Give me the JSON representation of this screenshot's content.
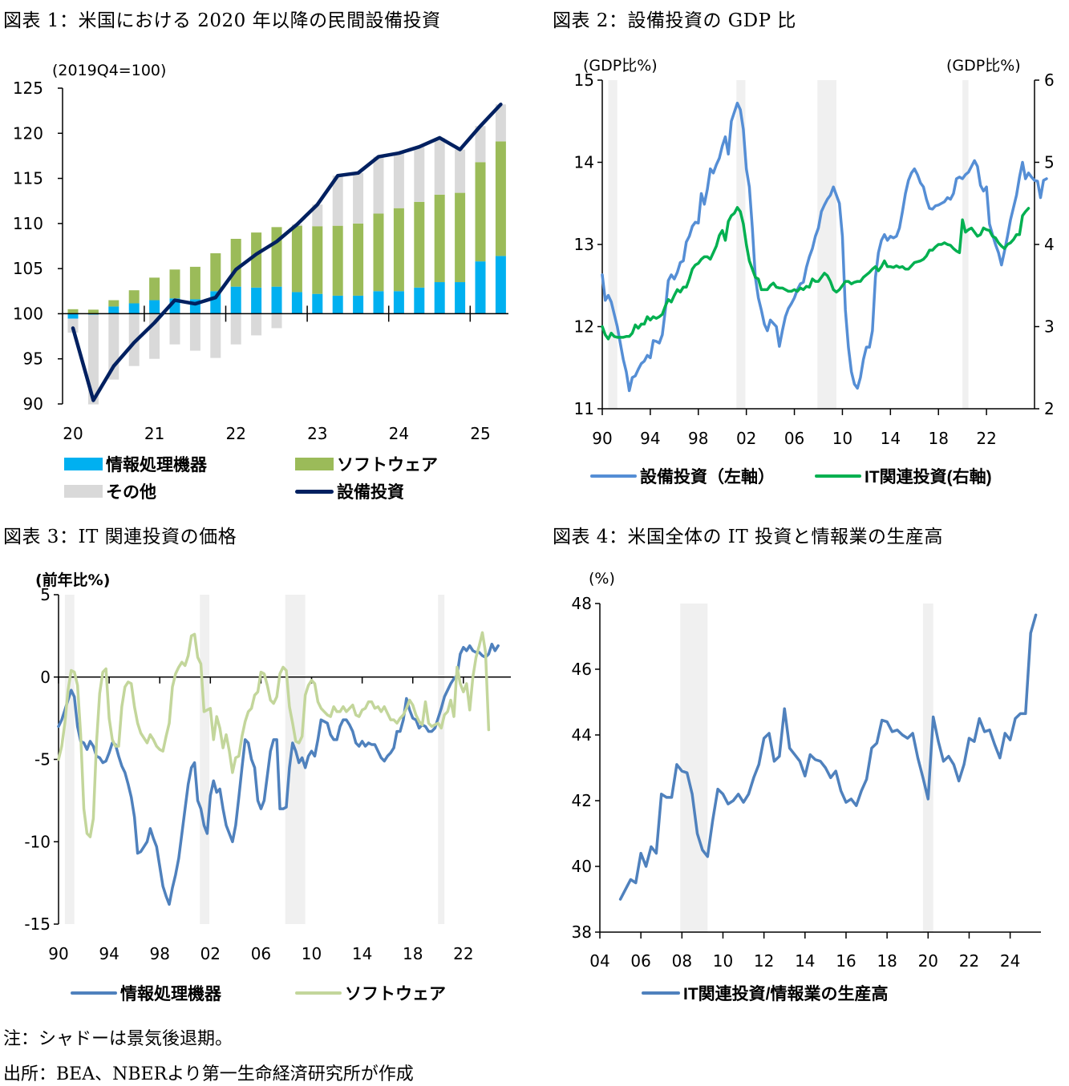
{
  "titles": {
    "fig1": "図表 1：米国における 2020 年以降の民間設備投資",
    "fig2": "図表 2：設備投資の GDP 比",
    "fig3": "図表 3：IT 関連投資の価格",
    "fig4": "図表 4：米国全体の IT 投資と情報業の生産高"
  },
  "notes": {
    "note": "注：シャドーは景気後退期。",
    "source": "出所：BEA、NBERより第一生命経済研究所が作成"
  },
  "chart_data": [
    {
      "id": "fig1",
      "type": "bar",
      "stacked": true,
      "title": "米国における 2020 年以降の民間設備投資",
      "unit_label": "(2019Q4=100)",
      "ylim": [
        90,
        125
      ],
      "yticks": [
        90,
        95,
        100,
        105,
        110,
        115,
        120,
        125
      ],
      "baseline": 100,
      "x_tick_labels": [
        "20",
        "21",
        "22",
        "23",
        "24",
        "25"
      ],
      "categories": [
        "2020Q1",
        "2020Q2",
        "2020Q3",
        "2020Q4",
        "2021Q1",
        "2021Q2",
        "2021Q3",
        "2021Q4",
        "2022Q1",
        "2022Q2",
        "2022Q3",
        "2022Q4",
        "2023Q1",
        "2023Q2",
        "2023Q3",
        "2023Q4",
        "2024Q1",
        "2024Q2",
        "2024Q3",
        "2024Q4",
        "2025Q1",
        "2025Q2"
      ],
      "series": [
        {
          "name": "情報処理機器",
          "kind": "bar",
          "color": "#00b0f0",
          "values": [
            -0.55,
            -0.1,
            0.8,
            1.15,
            1.5,
            1.7,
            1.6,
            2.5,
            3.0,
            2.9,
            3.0,
            2.4,
            2.2,
            2.0,
            2.0,
            2.5,
            2.5,
            2.9,
            3.5,
            3.5,
            5.8,
            6.4
          ]
        },
        {
          "name": "ソフトウェア",
          "kind": "bar",
          "color": "#9bbb59",
          "values": [
            0.5,
            0.45,
            0.7,
            1.45,
            2.5,
            3.2,
            3.6,
            4.2,
            5.3,
            6.1,
            6.6,
            7.35,
            7.5,
            7.75,
            8.0,
            8.6,
            9.2,
            9.5,
            9.7,
            9.9,
            11.0,
            12.7
          ]
        },
        {
          "name": "その他",
          "kind": "bar",
          "color": "#d9d9d9",
          "values": [
            -1.55,
            -9.95,
            -7.3,
            -5.8,
            -5.0,
            -3.4,
            -4.1,
            -4.9,
            -3.4,
            -2.4,
            -1.6,
            0.15,
            2.4,
            5.55,
            5.6,
            6.3,
            6.1,
            6.1,
            6.3,
            4.8,
            4.0,
            4.1
          ]
        },
        {
          "name": "設備投資",
          "kind": "line",
          "color": "#002060",
          "values": [
            98.4,
            90.4,
            94.2,
            96.8,
            99.0,
            101.5,
            101.1,
            101.8,
            104.9,
            106.6,
            108.0,
            109.9,
            112.1,
            115.3,
            115.6,
            117.4,
            117.8,
            118.5,
            119.5,
            118.2,
            120.8,
            123.2
          ]
        }
      ],
      "legend": {
        "position": "bottom",
        "items": [
          "情報処理機器",
          "ソフトウェア",
          "その他",
          "設備投資"
        ]
      }
    },
    {
      "id": "fig2",
      "type": "line",
      "title": "設備投資の GDP 比",
      "ylabel_left": "(GDP比%)",
      "ylabel_right": "(GDP比%)",
      "ylim_left": [
        11,
        15
      ],
      "ylim_right": [
        2,
        6
      ],
      "yticks_left": [
        11,
        12,
        13,
        14,
        15
      ],
      "yticks_right": [
        2,
        3,
        4,
        5,
        6
      ],
      "xlim": [
        1990,
        2026
      ],
      "x_tick_labels": [
        "90",
        "94",
        "98",
        "02",
        "06",
        "10",
        "14",
        "18",
        "22"
      ],
      "x_tick_years": [
        1990,
        1994,
        1998,
        2002,
        2006,
        2010,
        2014,
        2018,
        2022
      ],
      "recessions": [
        [
          1990.5,
          1991.25
        ],
        [
          2001.17,
          2001.92
        ],
        [
          2007.92,
          2009.5
        ],
        [
          2020.0,
          2020.5
        ]
      ],
      "x_start": 1990.0,
      "x_step": 0.25,
      "series": [
        {
          "name": "設備投資（左軸）",
          "axis": "left",
          "color": "#558ed5",
          "values": [
            12.63,
            12.32,
            12.38,
            12.3,
            12.15,
            12.0,
            11.8,
            11.6,
            11.45,
            11.22,
            11.38,
            11.4,
            11.48,
            11.55,
            11.58,
            11.65,
            11.62,
            11.83,
            11.82,
            11.8,
            11.9,
            12.2,
            12.56,
            12.63,
            12.58,
            12.66,
            12.78,
            12.8,
            13.03,
            13.1,
            13.22,
            13.27,
            13.26,
            13.62,
            13.49,
            13.67,
            13.92,
            13.87,
            13.97,
            14.05,
            14.2,
            14.31,
            14.1,
            14.5,
            14.61,
            14.72,
            14.64,
            14.4,
            13.92,
            13.7,
            13.2,
            12.6,
            12.35,
            12.2,
            12.03,
            11.95,
            12.08,
            12.04,
            12.0,
            11.76,
            11.95,
            12.12,
            12.22,
            12.28,
            12.35,
            12.45,
            12.52,
            12.54,
            12.72,
            12.85,
            12.95,
            13.1,
            13.2,
            13.4,
            13.48,
            13.55,
            13.6,
            13.7,
            13.6,
            13.5,
            13.1,
            12.2,
            11.75,
            11.45,
            11.3,
            11.25,
            11.38,
            11.6,
            11.75,
            11.75,
            11.95,
            12.6,
            12.9,
            13.05,
            13.12,
            13.05,
            13.1,
            13.08,
            13.1,
            13.2,
            13.4,
            13.62,
            13.78,
            13.87,
            13.92,
            13.85,
            13.75,
            13.7,
            13.55,
            13.44,
            13.43,
            13.47,
            13.48,
            13.5,
            13.52,
            13.57,
            13.55,
            13.62,
            13.8,
            13.82,
            13.8,
            13.85,
            13.88,
            13.95,
            14.02,
            13.95,
            13.72,
            13.65,
            13.7,
            13.25,
            13.12,
            13.0,
            12.9,
            12.75,
            12.92,
            13.1,
            13.3,
            13.45,
            13.6,
            13.82,
            14.0,
            13.8,
            13.87,
            13.82,
            13.78,
            13.77,
            13.57,
            13.78,
            13.8
          ]
        },
        {
          "name": "IT関連投資(右軸)",
          "axis": "right",
          "color": "#00b050",
          "values": [
            3.0,
            2.9,
            2.85,
            2.92,
            2.88,
            2.87,
            2.87,
            2.87,
            2.88,
            2.88,
            2.92,
            3.02,
            2.98,
            3.03,
            3.03,
            3.12,
            3.08,
            3.12,
            3.1,
            3.12,
            3.15,
            3.25,
            3.33,
            3.3,
            3.38,
            3.45,
            3.42,
            3.48,
            3.48,
            3.58,
            3.7,
            3.75,
            3.77,
            3.82,
            3.85,
            3.85,
            3.82,
            3.9,
            3.98,
            4.11,
            4.17,
            4.05,
            4.28,
            4.35,
            4.38,
            4.45,
            4.4,
            4.25,
            4.0,
            3.8,
            3.7,
            3.6,
            3.58,
            3.45,
            3.45,
            3.45,
            3.5,
            3.53,
            3.48,
            3.47,
            3.47,
            3.45,
            3.43,
            3.43,
            3.45,
            3.43,
            3.47,
            3.45,
            3.49,
            3.48,
            3.58,
            3.55,
            3.55,
            3.6,
            3.65,
            3.62,
            3.55,
            3.45,
            3.42,
            3.45,
            3.5,
            3.55,
            3.55,
            3.52,
            3.54,
            3.55,
            3.55,
            3.6,
            3.63,
            3.66,
            3.7,
            3.73,
            3.68,
            3.73,
            3.8,
            3.73,
            3.73,
            3.72,
            3.74,
            3.72,
            3.73,
            3.7,
            3.7,
            3.74,
            3.78,
            3.79,
            3.8,
            3.82,
            3.86,
            3.93,
            3.93,
            3.97,
            4.0,
            4.0,
            4.02,
            4.0,
            3.99,
            3.95,
            3.92,
            3.9,
            4.3,
            4.15,
            4.18,
            4.2,
            4.15,
            4.1,
            4.12,
            4.2,
            4.18,
            4.17,
            4.1,
            4.08,
            4.02,
            3.98,
            3.95,
            4.0,
            4.02,
            4.06,
            4.12,
            4.12,
            4.35,
            4.4,
            4.44
          ]
        }
      ],
      "legend": {
        "position": "bottom",
        "items": [
          "設備投資（左軸）",
          "IT関連投資(右軸)"
        ]
      }
    },
    {
      "id": "fig3",
      "type": "line",
      "title": "IT 関連投資の価格",
      "ylabel": "(前年比%)",
      "ylim": [
        -15,
        5
      ],
      "yticks": [
        -15,
        -10,
        -5,
        0,
        5
      ],
      "ytick_labels": [
        "-15",
        "-10",
        "-5",
        "0",
        "5"
      ],
      "xlim": [
        1990,
        2025.75
      ],
      "x_tick_labels": [
        "90",
        "94",
        "98",
        "02",
        "06",
        "10",
        "14",
        "18",
        "22"
      ],
      "x_tick_years": [
        1990,
        1994,
        1998,
        2002,
        2006,
        2010,
        2014,
        2018,
        2022
      ],
      "recessions": [
        [
          1990.5,
          1991.25
        ],
        [
          2001.17,
          2001.92
        ],
        [
          2007.92,
          2009.5
        ],
        [
          2020.0,
          2020.5
        ]
      ],
      "x_start": 1990.0,
      "x_step": 0.25,
      "series": [
        {
          "name": "情報処理機器",
          "color": "#4f81bd",
          "values": [
            -3.0,
            -2.6,
            -2.0,
            -1.4,
            -0.8,
            -1.2,
            -3.0,
            -3.9,
            -4.0,
            -4.4,
            -3.9,
            -4.2,
            -4.8,
            -4.9,
            -5.2,
            -5.1,
            -4.6,
            -4.0,
            -4.1,
            -4.8,
            -5.4,
            -5.8,
            -6.5,
            -7.3,
            -8.5,
            -10.7,
            -10.6,
            -10.3,
            -10.0,
            -9.2,
            -9.8,
            -10.3,
            -11.5,
            -12.7,
            -13.3,
            -13.8,
            -12.8,
            -12.0,
            -11.0,
            -9.5,
            -8.0,
            -6.5,
            -5.5,
            -5.2,
            -7.5,
            -8.0,
            -9.0,
            -9.5,
            -7.2,
            -6.3,
            -7.0,
            -6.8,
            -8.0,
            -9.0,
            -9.5,
            -10.0,
            -9.0,
            -7.3,
            -5.5,
            -3.8,
            -4.0,
            -5.0,
            -5.5,
            -7.5,
            -8.0,
            -7.5,
            -6.0,
            -4.5,
            -3.8,
            -3.8,
            -8.0,
            -8.0,
            -7.9,
            -5.5,
            -4.0,
            -4.5,
            -5.2,
            -4.9,
            -5.5,
            -4.8,
            -4.5,
            -4.8,
            -3.8,
            -2.6,
            -2.7,
            -2.8,
            -3.5,
            -3.8,
            -3.8,
            -3.0,
            -2.6,
            -2.6,
            -2.9,
            -3.3,
            -4.0,
            -4.2,
            -3.9,
            -4.2,
            -4.0,
            -4.1,
            -4.1,
            -4.5,
            -4.9,
            -5.1,
            -4.8,
            -4.6,
            -4.3,
            -3.3,
            -3.3,
            -2.6,
            -1.3,
            -2.0,
            -2.5,
            -2.6,
            -3.1,
            -2.9,
            -3.0,
            -3.3,
            -3.3,
            -3.1,
            -2.5,
            -1.9,
            -1.2,
            -0.8,
            -0.4,
            -0.1,
            0.1,
            1.4,
            1.8,
            1.6,
            1.9,
            1.6,
            1.5,
            1.5,
            1.3,
            1.2,
            1.4,
            2.0,
            1.6,
            1.9
          ]
        },
        {
          "name": "ソフトウェア",
          "color": "#c3d69b",
          "values": [
            -5.0,
            -4.2,
            -2.8,
            -0.8,
            0.4,
            0.3,
            -0.5,
            -3.5,
            -8.0,
            -9.5,
            -9.7,
            -8.6,
            -4.0,
            -1.0,
            0.3,
            0.5,
            -2.5,
            -3.8,
            -4.2,
            -4.2,
            -1.8,
            -0.6,
            -0.3,
            -0.4,
            -1.8,
            -2.8,
            -3.4,
            -3.7,
            -4.0,
            -3.5,
            -3.8,
            -4.2,
            -4.4,
            -4.5,
            -3.6,
            -2.8,
            -0.6,
            0.2,
            0.6,
            0.9,
            0.7,
            1.3,
            2.5,
            2.6,
            1.2,
            0.8,
            -2.1,
            -2.0,
            -1.9,
            -3.8,
            -2.4,
            -3.1,
            -4.3,
            -3.5,
            -4.5,
            -5.8,
            -4.9,
            -4.8,
            -3.6,
            -2.7,
            -2.1,
            -1.9,
            -1.1,
            -0.9,
            0.3,
            0.2,
            -0.5,
            -1.4,
            -1.6,
            -1.2,
            0.2,
            0.6,
            0.4,
            -1.8,
            -2.8,
            -3.9,
            -4.0,
            -3.6,
            -1.1,
            -0.5,
            -0.2,
            -0.4,
            -1.5,
            -1.9,
            -2.1,
            -2.3,
            -2.4,
            -1.8,
            -2.1,
            -2.1,
            -1.8,
            -2.1,
            -1.9,
            -1.7,
            -2.3,
            -2.4,
            -2.0,
            -1.9,
            -1.5,
            -1.5,
            -1.9,
            -1.8,
            -2.1,
            -1.8,
            -2.2,
            -2.6,
            -2.6,
            -2.8,
            -2.5,
            -2.3,
            -1.9,
            -1.4,
            -1.7,
            -2.3,
            -2.7,
            -2.9,
            -1.5,
            -2.8,
            -3.0,
            -2.9,
            -2.8,
            -3.1,
            -2.3,
            -2.1,
            -1.4,
            -2.4,
            0.6,
            -0.4,
            -0.9,
            -0.4,
            -2.0,
            0.0,
            1.2,
            1.9,
            2.7,
            1.5,
            -3.2
          ]
        }
      ],
      "legend": {
        "position": "bottom",
        "items": [
          "情報処理機器",
          "ソフトウェア"
        ]
      }
    },
    {
      "id": "fig4",
      "type": "line",
      "title": "米国全体の IT 投資と情報業の生産高",
      "ylabel": "(%)",
      "ylim": [
        38,
        48
      ],
      "yticks": [
        38,
        40,
        42,
        44,
        46,
        48
      ],
      "xlim": [
        2004,
        2025.5
      ],
      "x_tick_labels": [
        "04",
        "06",
        "08",
        "10",
        "12",
        "14",
        "16",
        "18",
        "20",
        "22",
        "24"
      ],
      "x_tick_years": [
        2004,
        2006,
        2008,
        2010,
        2012,
        2014,
        2016,
        2018,
        2020,
        2022,
        2024
      ],
      "recessions": [
        [
          2007.92,
          2009.25
        ],
        [
          2019.75,
          2020.25
        ]
      ],
      "x_start": 2005.0,
      "x_step": 0.25,
      "series": [
        {
          "name": "IT関連投資/情報業の生産高",
          "color": "#4f81bd",
          "values": [
            39.0,
            39.3,
            39.6,
            39.5,
            40.4,
            40.0,
            40.6,
            40.4,
            42.2,
            42.1,
            42.1,
            43.1,
            42.9,
            42.85,
            42.2,
            41.0,
            40.5,
            40.3,
            41.4,
            42.35,
            42.2,
            41.9,
            42.0,
            42.2,
            41.95,
            42.2,
            42.7,
            43.1,
            43.9,
            44.05,
            43.2,
            43.35,
            44.8,
            43.6,
            43.4,
            43.2,
            42.75,
            43.4,
            43.25,
            43.2,
            43.0,
            42.7,
            42.9,
            42.3,
            41.95,
            42.05,
            41.85,
            42.3,
            42.65,
            43.6,
            43.75,
            44.45,
            44.4,
            44.1,
            44.15,
            44.0,
            43.9,
            44.05,
            43.3,
            42.7,
            42.05,
            44.55,
            43.8,
            43.2,
            43.35,
            43.1,
            42.6,
            43.1,
            43.9,
            43.8,
            44.5,
            44.1,
            44.15,
            43.7,
            43.3,
            44.05,
            43.85,
            44.5,
            44.65,
            44.65,
            47.1,
            47.65
          ]
        }
      ],
      "legend": {
        "position": "bottom",
        "items": [
          "IT関連投資/情報業の生産高"
        ]
      }
    }
  ]
}
